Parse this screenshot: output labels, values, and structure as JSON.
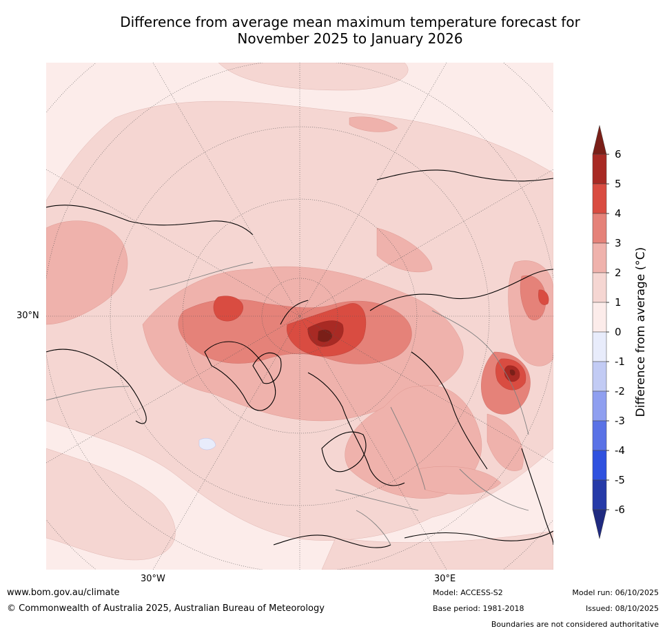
{
  "title": {
    "line1": "Difference from average mean maximum temperature forecast for",
    "line2": "November 2025 to January 2026"
  },
  "axes": {
    "lat_label": "30°N",
    "lon_west_label": "30°W",
    "lon_east_label": "30°E"
  },
  "colorbar": {
    "title": "Difference from average (°C)",
    "ticks": [
      "6",
      "5",
      "4",
      "3",
      "2",
      "1",
      "0",
      "-1",
      "-2",
      "-3",
      "-4",
      "-5",
      "-6"
    ],
    "colors_top_to_bottom": [
      "#a82a24",
      "#d94c41",
      "#e58279",
      "#efb2ac",
      "#f5d6d2",
      "#fcecea",
      "#e8ecfb",
      "#c2cbf4",
      "#8f9ff0",
      "#5a72e6",
      "#2f51df",
      "#263aa8"
    ],
    "over_color": "#7a1f18",
    "under_color": "#1f2a80"
  },
  "footer": {
    "website": "www.bom.gov.au/climate",
    "copyright": "© Commonwealth of Australia 2025, Australian Bureau of Meteorology",
    "model": "Model: ACCESS-S2",
    "base_period": "Base period: 1981-2018",
    "model_run": "Model run: 06/10/2025",
    "issued": "Issued: 08/10/2025",
    "disclaimer": "Boundaries are not considered authoritative"
  }
}
